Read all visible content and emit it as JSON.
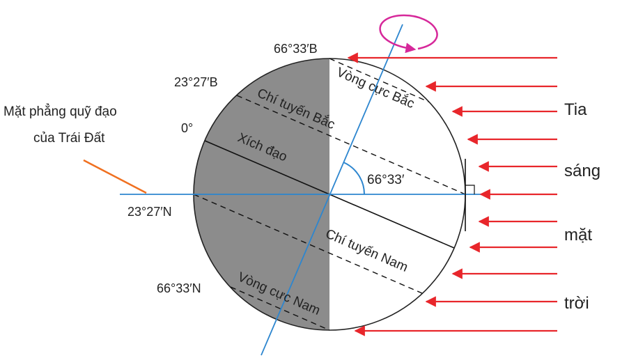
{
  "labels": {
    "polar_north_lat": "66°33′B",
    "tropic_north_lat": "23°27′B",
    "equator_lat": "0°",
    "tropic_south_lat": "23°27′N",
    "polar_south_lat": "66°33′N",
    "orbit_plane_line1": "Mặt phẳng quỹ đạo",
    "orbit_plane_line2": "của Trái Đất",
    "arctic_circle": "Vòng cực Bắc",
    "tropic_cancer": "Chí tuyến Bắc",
    "equator": "Xích đạo",
    "axis_angle": "66°33′",
    "tropic_capricorn": "Chí tuyến Nam",
    "antarctic_circle": "Vòng cực Nam",
    "sunlight_1": "Tia",
    "sunlight_2": "sáng",
    "sunlight_3": "mặt",
    "sunlight_4": "trời"
  }
}
